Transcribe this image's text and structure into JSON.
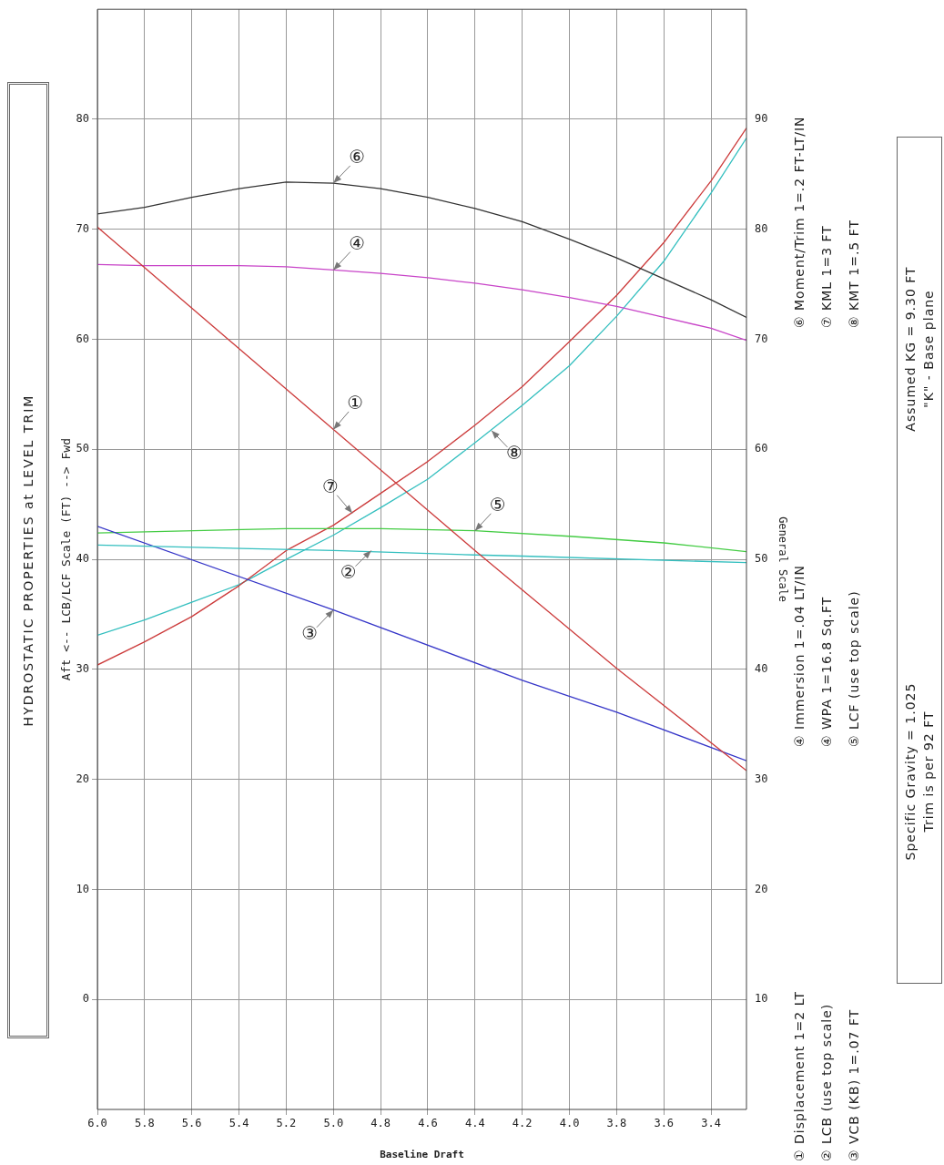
{
  "chart_data": {
    "type": "line",
    "title": "HYDROSTATIC PROPERTIES at LEVEL TRIM",
    "xlabel": "Baseline Draft",
    "ylabel": "Aft <-- LCB/LCF Scale (FT) --> Fwd",
    "y2label": "General Scale",
    "xlim": [
      6.0,
      3.25
    ],
    "xticks": [
      {
        "value": 6,
        "label": "6.0"
      },
      5.8,
      5.6,
      5.4,
      5.2,
      {
        "value": 5,
        "label": "5.0"
      },
      4.8,
      4.6,
      4.4,
      4.2,
      {
        "value": 4,
        "label": "4.0"
      },
      3.8,
      3.6,
      3.4
    ],
    "ylim": [
      -10,
      90
    ],
    "yticks": [
      0,
      10,
      20,
      30,
      40,
      50,
      60,
      70,
      80
    ],
    "y2lim": [
      0,
      100
    ],
    "y2ticks": [
      10,
      20,
      30,
      40,
      50,
      60,
      70,
      80,
      90
    ],
    "grid": true,
    "legend": false,
    "marker": "none",
    "line_style": "solid",
    "series": [
      {
        "color": "#cc3b3b",
        "axis": "y2",
        "x": [
          6.0,
          5.0,
          4.4,
          3.8,
          3.25
        ],
        "values": [
          80.2,
          61.8,
          50.8,
          40.1,
          30.8
        ]
      },
      {
        "color": "#33bfbf",
        "axis": "y",
        "x": [
          6.0,
          5.0,
          4.4,
          4.2,
          3.25
        ],
        "values": [
          41.3,
          40.8,
          40.4,
          40.3,
          39.7
        ]
      },
      {
        "color": "#3535c8",
        "axis": "y2",
        "x": [
          6.0,
          5.0,
          4.2,
          3.8,
          3.25
        ],
        "values": [
          53.0,
          45.4,
          39.0,
          36.1,
          31.7
        ]
      },
      {
        "color": "#c844c8",
        "axis": "y2",
        "x": [
          6.0,
          5.8,
          5.6,
          5.4,
          5.2,
          5.0,
          4.8,
          4.6,
          4.4,
          4.2,
          4.0,
          3.8,
          3.6,
          3.4,
          3.25
        ],
        "values": [
          76.8,
          76.7,
          76.7,
          76.7,
          76.6,
          76.3,
          76.0,
          75.6,
          75.1,
          74.5,
          73.8,
          73.0,
          72.0,
          71.0,
          69.9
        ]
      },
      {
        "color": "#44cc44",
        "axis": "y",
        "x": [
          6.0,
          5.2,
          4.8,
          4.4,
          4.0,
          3.6,
          3.25
        ],
        "values": [
          42.4,
          42.8,
          42.8,
          42.6,
          42.1,
          41.5,
          40.7
        ]
      },
      {
        "color": "#333333",
        "axis": "y2",
        "x": [
          6.0,
          5.8,
          5.6,
          5.4,
          5.2,
          5.0,
          4.8,
          4.6,
          4.4,
          4.2,
          4.0,
          3.8,
          3.6,
          3.4,
          3.25
        ],
        "values": [
          81.4,
          82.0,
          82.9,
          83.7,
          84.3,
          84.2,
          83.7,
          82.9,
          81.9,
          80.7,
          79.1,
          77.4,
          75.5,
          73.6,
          72.0
        ]
      },
      {
        "color": "#cc3b3b",
        "axis": "y2",
        "x": [
          6.0,
          5.8,
          5.6,
          5.4,
          5.2,
          5.0,
          4.8,
          4.6,
          4.4,
          4.2,
          4.0,
          3.8,
          3.6,
          3.4,
          3.25
        ],
        "values": [
          40.4,
          42.5,
          44.8,
          47.6,
          50.8,
          53.1,
          56.0,
          58.9,
          62.2,
          65.7,
          69.8,
          74.0,
          78.8,
          84.4,
          89.2
        ]
      },
      {
        "color": "#33bfbf",
        "axis": "y2",
        "x": [
          6.0,
          5.8,
          5.6,
          5.4,
          5.2,
          5.0,
          4.8,
          4.6,
          4.4,
          4.2,
          4.0,
          3.8,
          3.6,
          3.4,
          3.25
        ],
        "values": [
          43.1,
          44.5,
          46.1,
          47.7,
          50.0,
          52.2,
          54.7,
          57.3,
          60.6,
          64.0,
          67.6,
          72.1,
          77.1,
          83.3,
          88.3
        ]
      }
    ],
    "annotations": [
      {
        "text": "⑥",
        "x": 5.0,
        "y": 74.2
      },
      {
        "text": "④",
        "x": 5.0,
        "y": 66.3
      },
      {
        "text": "①",
        "x": 5.0,
        "y": 51.8
      },
      {
        "text": "⑦",
        "x": 4.92,
        "y": 44.2
      },
      {
        "text": "⑧",
        "x": 4.33,
        "y": 51.7
      },
      {
        "text": "⑤",
        "x": 4.4,
        "y": 42.6
      },
      {
        "text": "②",
        "x": 4.84,
        "y": 40.8
      },
      {
        "text": "③",
        "x": 5.0,
        "y": 35.4
      },
      "① Displacement 1=2 LT",
      "② LCB (use top scale)",
      "③ VCB (KB) 1=.07 FT",
      "④ Immersion 1=.04 LT/IN",
      "④ WPA 1=16.8 Sq.FT",
      "⑤ LCF (use top scale)",
      "⑥ Moment/Trim 1=.2 FT-LT/IN",
      "⑦ KML 1=3 FT",
      "⑧ KMT 1=.5 FT",
      "Specific Gravity = 1.025",
      "Assumed KG = 9.30 FT",
      "Trim is per 92 FT",
      "\"K\" - Base plane"
    ]
  }
}
